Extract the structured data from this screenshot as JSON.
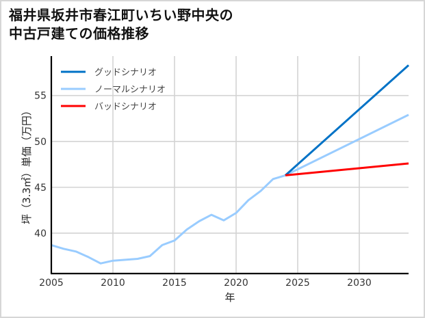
{
  "title": {
    "line1": "福井県坂井市春江町いちい野中央の",
    "line2": "中古戸建ての価格推移"
  },
  "colors": {
    "good": "#0072C6",
    "normal": "#99CCFF",
    "bad": "#FF0000",
    "grid": "#d3d3d3",
    "axis": "#000000",
    "frame": "#d6d6d6"
  },
  "chart_data": {
    "type": "line",
    "title": "福井県坂井市春江町いちい野中央の中古戸建ての価格推移",
    "xlabel": "年",
    "ylabel": "坪（3.3㎡）単価（万円）",
    "xlim": [
      2005,
      2034
    ],
    "ylim": [
      35.6,
      59.3
    ],
    "xticks": [
      2005,
      2010,
      2015,
      2020,
      2025,
      2030
    ],
    "yticks": [
      40,
      45,
      50,
      55
    ],
    "grid": true,
    "legend_position": "upper left",
    "series": [
      {
        "name": "グッドシナリオ",
        "color": "#0072C6",
        "x": [
          2024,
          2034
        ],
        "values": [
          46.3,
          58.3
        ]
      },
      {
        "name": "ノーマルシナリオ",
        "color": "#99CCFF",
        "x": [
          2005,
          2006,
          2007,
          2008,
          2009,
          2010,
          2011,
          2012,
          2013,
          2014,
          2015,
          2016,
          2017,
          2018,
          2019,
          2020,
          2021,
          2022,
          2023,
          2024,
          2034
        ],
        "values": [
          38.7,
          38.3,
          38.0,
          37.4,
          36.7,
          37.0,
          37.1,
          37.2,
          37.5,
          38.7,
          39.2,
          40.4,
          41.3,
          42.0,
          41.4,
          42.2,
          43.6,
          44.6,
          45.9,
          46.3,
          52.9
        ]
      },
      {
        "name": "バッドシナリオ",
        "color": "#FF0000",
        "x": [
          2024,
          2034
        ],
        "values": [
          46.3,
          47.6
        ]
      }
    ]
  },
  "axes": {
    "x_ticks": [
      "2005",
      "2010",
      "2015",
      "2020",
      "2025",
      "2030"
    ],
    "y_ticks": [
      "40",
      "45",
      "50",
      "55"
    ],
    "xlabel": "年",
    "ylabel": "坪（3.3㎡）単価（万円）"
  },
  "legend": [
    {
      "label": "グッドシナリオ",
      "color": "#0072C6"
    },
    {
      "label": "ノーマルシナリオ",
      "color": "#99CCFF"
    },
    {
      "label": "バッドシナリオ",
      "color": "#FF0000"
    }
  ]
}
